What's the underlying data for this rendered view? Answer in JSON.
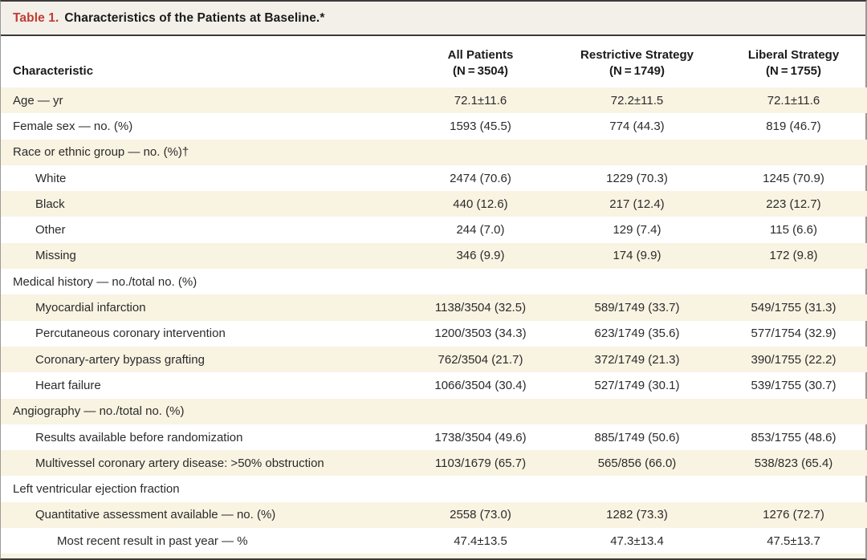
{
  "table": {
    "title_label": "Table 1.",
    "title_text": "Characteristics of the Patients at Baseline.*",
    "columns": [
      {
        "label": "Characteristic"
      },
      {
        "label": "All Patients",
        "n": "(N = 3504)"
      },
      {
        "label": "Restrictive Strategy",
        "n": "(N = 1749)"
      },
      {
        "label": "Liberal Strategy",
        "n": "(N = 1755)"
      }
    ],
    "rows": [
      {
        "label": "Age — yr",
        "indent": 0,
        "shaded": true,
        "values": [
          "72.1±11.6",
          "72.2±11.5",
          "72.1±11.6"
        ]
      },
      {
        "label": "Female sex — no. (%)",
        "indent": 0,
        "shaded": false,
        "values": [
          "1593 (45.5)",
          "774 (44.3)",
          "819 (46.7)"
        ]
      },
      {
        "label": "Race or ethnic group — no. (%)†",
        "indent": 0,
        "shaded": true,
        "values": [
          "",
          "",
          ""
        ]
      },
      {
        "label": "White",
        "indent": 1,
        "shaded": false,
        "values": [
          "2474 (70.6)",
          "1229 (70.3)",
          "1245 (70.9)"
        ]
      },
      {
        "label": "Black",
        "indent": 1,
        "shaded": true,
        "values": [
          "440 (12.6)",
          "217 (12.4)",
          "223 (12.7)"
        ]
      },
      {
        "label": "Other",
        "indent": 1,
        "shaded": false,
        "values": [
          "244 (7.0)",
          "129 (7.4)",
          "115 (6.6)"
        ]
      },
      {
        "label": "Missing",
        "indent": 1,
        "shaded": true,
        "values": [
          "346 (9.9)",
          "174 (9.9)",
          "172 (9.8)"
        ]
      },
      {
        "label": "Medical history — no./total no. (%)",
        "indent": 0,
        "shaded": false,
        "values": [
          "",
          "",
          ""
        ]
      },
      {
        "label": "Myocardial infarction",
        "indent": 1,
        "shaded": true,
        "values": [
          "1138/3504 (32.5)",
          "589/1749 (33.7)",
          "549/1755 (31.3)"
        ]
      },
      {
        "label": "Percutaneous coronary intervention",
        "indent": 1,
        "shaded": false,
        "values": [
          "1200/3503 (34.3)",
          "623/1749 (35.6)",
          "577/1754 (32.9)"
        ]
      },
      {
        "label": "Coronary-artery bypass grafting",
        "indent": 1,
        "shaded": true,
        "values": [
          "762/3504 (21.7)",
          "372/1749 (21.3)",
          "390/1755 (22.2)"
        ]
      },
      {
        "label": "Heart failure",
        "indent": 1,
        "shaded": false,
        "values": [
          "1066/3504 (30.4)",
          "527/1749 (30.1)",
          "539/1755 (30.7)"
        ]
      },
      {
        "label": "Angiography — no./total no. (%)",
        "indent": 0,
        "shaded": true,
        "values": [
          "",
          "",
          ""
        ]
      },
      {
        "label": "Results available before randomization",
        "indent": 1,
        "shaded": false,
        "values": [
          "1738/3504 (49.6)",
          "885/1749 (50.6)",
          "853/1755 (48.6)"
        ]
      },
      {
        "label": "Multivessel coronary artery disease: >50% obstruction",
        "indent": 1,
        "shaded": true,
        "values": [
          "1103/1679 (65.7)",
          "565/856 (66.0)",
          "538/823 (65.4)"
        ]
      },
      {
        "label": "Left ventricular ejection fraction",
        "indent": 0,
        "shaded": false,
        "values": [
          "",
          "",
          ""
        ]
      },
      {
        "label": "Quantitative assessment available — no. (%)",
        "indent": 1,
        "shaded": true,
        "values": [
          "2558 (73.0)",
          "1282 (73.3)",
          "1276 (72.7)"
        ]
      },
      {
        "label": "Most recent result in past year — %",
        "indent": 2,
        "shaded": false,
        "values": [
          "47.4±13.5",
          "47.3±13.4",
          "47.5±13.7"
        ]
      }
    ]
  },
  "colors": {
    "title_accent": "#c23b34",
    "shaded_row": "#f9f3e2",
    "title_bar_bg": "#f2f0e9",
    "rule": "#3a3a3a"
  }
}
